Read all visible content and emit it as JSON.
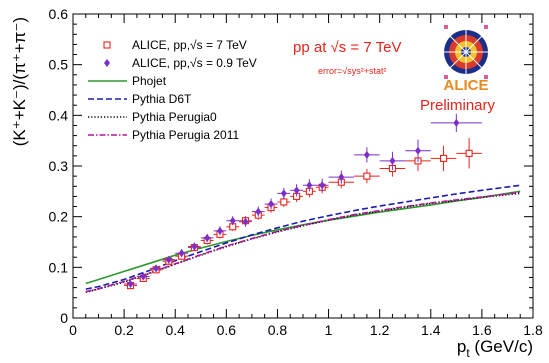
{
  "chart_data": {
    "type": "scatter",
    "xlabel": "p_t (GeV/c)",
    "ylabel": "(K⁺+K⁻)/(π⁺+π⁻)",
    "xlim": [
      0,
      1.8
    ],
    "ylim": [
      0,
      0.6
    ],
    "x_ticks": [
      "0",
      "0.2",
      "0.4",
      "0.6",
      "0.8",
      "1",
      "1.2",
      "1.4",
      "1.6",
      "1.8"
    ],
    "y_ticks": [
      "0",
      "0.1",
      "0.2",
      "0.3",
      "0.4",
      "0.5",
      "0.6"
    ],
    "grid": false,
    "legend_position": "top-left",
    "annotations": {
      "energy": "pp at √s = 7 TeV",
      "error_note": "error=√sys²+stat²",
      "logo_text": "ALICE",
      "status": "Preliminary"
    },
    "colors": {
      "red": "#e8251b",
      "purple": "#7a2fc8",
      "green": "#2c9a2c",
      "blue": "#1b1bb0",
      "black": "#000000",
      "magenta": "#b0169c"
    },
    "series": [
      {
        "name": "ALICE, pp,√s = 7 TeV",
        "kind": "points",
        "marker": "open-square",
        "color": "red",
        "points": [
          {
            "x": 0.225,
            "y": 0.064,
            "xerr": 0.025,
            "yerr": 0.006
          },
          {
            "x": 0.275,
            "y": 0.078,
            "xerr": 0.025,
            "yerr": 0.006
          },
          {
            "x": 0.325,
            "y": 0.095,
            "xerr": 0.025,
            "yerr": 0.006
          },
          {
            "x": 0.375,
            "y": 0.112,
            "xerr": 0.025,
            "yerr": 0.007
          },
          {
            "x": 0.425,
            "y": 0.122,
            "xerr": 0.025,
            "yerr": 0.007
          },
          {
            "x": 0.475,
            "y": 0.139,
            "xerr": 0.025,
            "yerr": 0.007
          },
          {
            "x": 0.525,
            "y": 0.153,
            "xerr": 0.025,
            "yerr": 0.008
          },
          {
            "x": 0.575,
            "y": 0.165,
            "xerr": 0.025,
            "yerr": 0.008
          },
          {
            "x": 0.625,
            "y": 0.18,
            "xerr": 0.025,
            "yerr": 0.008
          },
          {
            "x": 0.675,
            "y": 0.192,
            "xerr": 0.025,
            "yerr": 0.009
          },
          {
            "x": 0.725,
            "y": 0.203,
            "xerr": 0.025,
            "yerr": 0.009
          },
          {
            "x": 0.775,
            "y": 0.218,
            "xerr": 0.025,
            "yerr": 0.01
          },
          {
            "x": 0.825,
            "y": 0.229,
            "xerr": 0.025,
            "yerr": 0.01
          },
          {
            "x": 0.875,
            "y": 0.24,
            "xerr": 0.025,
            "yerr": 0.011
          },
          {
            "x": 0.925,
            "y": 0.25,
            "xerr": 0.025,
            "yerr": 0.012
          },
          {
            "x": 0.975,
            "y": 0.258,
            "xerr": 0.025,
            "yerr": 0.012
          },
          {
            "x": 1.05,
            "y": 0.268,
            "xerr": 0.05,
            "yerr": 0.012
          },
          {
            "x": 1.15,
            "y": 0.28,
            "xerr": 0.05,
            "yerr": 0.014
          },
          {
            "x": 1.25,
            "y": 0.295,
            "xerr": 0.05,
            "yerr": 0.016
          },
          {
            "x": 1.35,
            "y": 0.31,
            "xerr": 0.05,
            "yerr": 0.02
          },
          {
            "x": 1.45,
            "y": 0.315,
            "xerr": 0.05,
            "yerr": 0.025
          },
          {
            "x": 1.55,
            "y": 0.325,
            "xerr": 0.05,
            "yerr": 0.03
          }
        ]
      },
      {
        "name": "ALICE, pp,√s = 0.9 TeV",
        "kind": "points",
        "marker": "filled-diamond",
        "color": "purple",
        "points": [
          {
            "x": 0.225,
            "y": 0.067,
            "xerr": 0.025,
            "yerr": 0.006
          },
          {
            "x": 0.275,
            "y": 0.082,
            "xerr": 0.025,
            "yerr": 0.006
          },
          {
            "x": 0.325,
            "y": 0.098,
            "xerr": 0.025,
            "yerr": 0.007
          },
          {
            "x": 0.375,
            "y": 0.115,
            "xerr": 0.025,
            "yerr": 0.007
          },
          {
            "x": 0.425,
            "y": 0.128,
            "xerr": 0.025,
            "yerr": 0.008
          },
          {
            "x": 0.475,
            "y": 0.141,
            "xerr": 0.025,
            "yerr": 0.008
          },
          {
            "x": 0.525,
            "y": 0.158,
            "xerr": 0.025,
            "yerr": 0.008
          },
          {
            "x": 0.575,
            "y": 0.172,
            "xerr": 0.025,
            "yerr": 0.009
          },
          {
            "x": 0.625,
            "y": 0.192,
            "xerr": 0.025,
            "yerr": 0.009
          },
          {
            "x": 0.675,
            "y": 0.19,
            "xerr": 0.025,
            "yerr": 0.01
          },
          {
            "x": 0.725,
            "y": 0.21,
            "xerr": 0.025,
            "yerr": 0.01
          },
          {
            "x": 0.775,
            "y": 0.225,
            "xerr": 0.025,
            "yerr": 0.011
          },
          {
            "x": 0.825,
            "y": 0.246,
            "xerr": 0.025,
            "yerr": 0.011
          },
          {
            "x": 0.875,
            "y": 0.252,
            "xerr": 0.025,
            "yerr": 0.012
          },
          {
            "x": 0.925,
            "y": 0.262,
            "xerr": 0.025,
            "yerr": 0.012
          },
          {
            "x": 0.975,
            "y": 0.262,
            "xerr": 0.025,
            "yerr": 0.013
          },
          {
            "x": 1.05,
            "y": 0.278,
            "xerr": 0.05,
            "yerr": 0.013
          },
          {
            "x": 1.15,
            "y": 0.322,
            "xerr": 0.05,
            "yerr": 0.015
          },
          {
            "x": 1.25,
            "y": 0.31,
            "xerr": 0.05,
            "yerr": 0.018
          },
          {
            "x": 1.35,
            "y": 0.33,
            "xerr": 0.05,
            "yerr": 0.022
          },
          {
            "x": 1.5,
            "y": 0.385,
            "xerr": 0.1,
            "yerr": 0.018
          }
        ]
      },
      {
        "name": "Phojet",
        "kind": "line",
        "style": "solid",
        "color": "green",
        "points": [
          [
            0.05,
            0.068
          ],
          [
            0.1,
            0.076
          ],
          [
            0.2,
            0.092
          ],
          [
            0.3,
            0.108
          ],
          [
            0.4,
            0.124
          ],
          [
            0.5,
            0.138
          ],
          [
            0.6,
            0.151
          ],
          [
            0.7,
            0.163
          ],
          [
            0.8,
            0.174
          ],
          [
            0.9,
            0.184
          ],
          [
            1.0,
            0.193
          ],
          [
            1.1,
            0.201
          ],
          [
            1.2,
            0.209
          ],
          [
            1.3,
            0.216
          ],
          [
            1.4,
            0.223
          ],
          [
            1.5,
            0.231
          ],
          [
            1.6,
            0.238
          ],
          [
            1.75,
            0.25
          ]
        ]
      },
      {
        "name": "Pythia D6T",
        "kind": "line",
        "style": "dashed",
        "color": "blue",
        "points": [
          [
            0.05,
            0.057
          ],
          [
            0.1,
            0.062
          ],
          [
            0.2,
            0.076
          ],
          [
            0.3,
            0.094
          ],
          [
            0.4,
            0.113
          ],
          [
            0.5,
            0.131
          ],
          [
            0.6,
            0.148
          ],
          [
            0.7,
            0.164
          ],
          [
            0.8,
            0.178
          ],
          [
            0.9,
            0.191
          ],
          [
            1.0,
            0.202
          ],
          [
            1.1,
            0.212
          ],
          [
            1.2,
            0.221
          ],
          [
            1.3,
            0.229
          ],
          [
            1.4,
            0.237
          ],
          [
            1.5,
            0.245
          ],
          [
            1.6,
            0.252
          ],
          [
            1.75,
            0.262
          ]
        ]
      },
      {
        "name": "Pythia Perugia0",
        "kind": "line",
        "style": "dotted",
        "color": "black",
        "points": [
          [
            0.05,
            0.051
          ],
          [
            0.1,
            0.057
          ],
          [
            0.2,
            0.071
          ],
          [
            0.3,
            0.088
          ],
          [
            0.4,
            0.106
          ],
          [
            0.5,
            0.124
          ],
          [
            0.6,
            0.141
          ],
          [
            0.7,
            0.156
          ],
          [
            0.8,
            0.17
          ],
          [
            0.9,
            0.182
          ],
          [
            1.0,
            0.193
          ],
          [
            1.1,
            0.203
          ],
          [
            1.2,
            0.211
          ],
          [
            1.3,
            0.219
          ],
          [
            1.4,
            0.226
          ],
          [
            1.5,
            0.232
          ],
          [
            1.6,
            0.238
          ],
          [
            1.75,
            0.246
          ]
        ]
      },
      {
        "name": "Pythia Perugia 2011",
        "kind": "line",
        "style": "dashdot",
        "color": "magenta",
        "points": [
          [
            0.05,
            0.052
          ],
          [
            0.1,
            0.058
          ],
          [
            0.2,
            0.072
          ],
          [
            0.3,
            0.089
          ],
          [
            0.4,
            0.107
          ],
          [
            0.5,
            0.125
          ],
          [
            0.6,
            0.142
          ],
          [
            0.7,
            0.157
          ],
          [
            0.8,
            0.171
          ],
          [
            0.9,
            0.183
          ],
          [
            1.0,
            0.194
          ],
          [
            1.1,
            0.204
          ],
          [
            1.2,
            0.212
          ],
          [
            1.3,
            0.22
          ],
          [
            1.4,
            0.227
          ],
          [
            1.5,
            0.233
          ],
          [
            1.6,
            0.239
          ],
          [
            1.75,
            0.248
          ]
        ]
      }
    ]
  }
}
